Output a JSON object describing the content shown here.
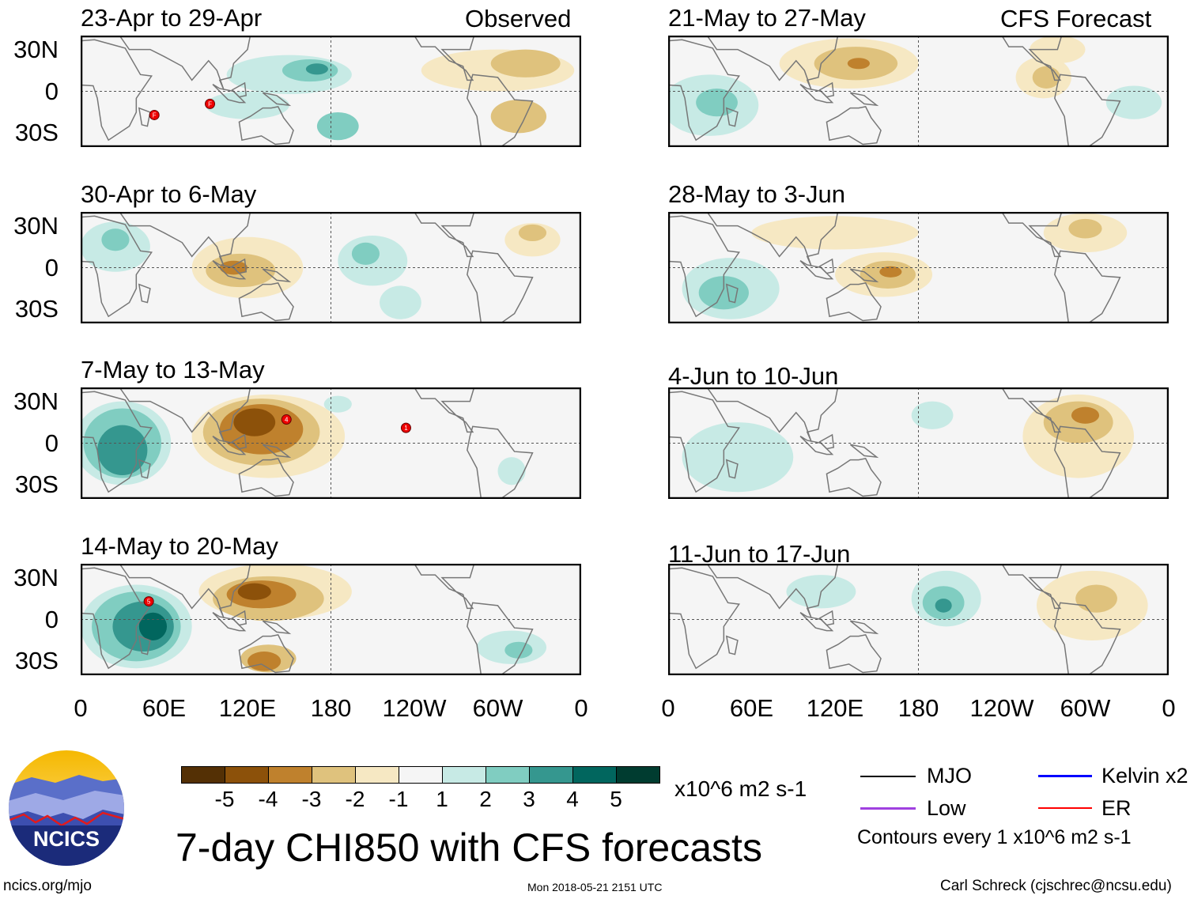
{
  "header": {
    "observed_label": "Observed",
    "forecast_label": "CFS Forecast"
  },
  "panels": [
    {
      "title": "23-Apr to 29-Apr",
      "type": "observed"
    },
    {
      "title": "30-Apr to 6-May",
      "type": "observed"
    },
    {
      "title": "7-May to 13-May",
      "type": "observed"
    },
    {
      "title": "14-May to 20-May",
      "type": "observed"
    },
    {
      "title": "21-May to 27-May",
      "type": "forecast"
    },
    {
      "title": "28-May to 3-Jun",
      "type": "forecast"
    },
    {
      "title": "4-Jun to 10-Jun",
      "type": "forecast"
    },
    {
      "title": "11-Jun to 17-Jun",
      "type": "forecast"
    }
  ],
  "y_ticks": [
    "30N",
    "0",
    "30S"
  ],
  "x_ticks": [
    "0",
    "60E",
    "120E",
    "180",
    "120W",
    "60W",
    "0"
  ],
  "colorbar": {
    "labels": [
      "-5",
      "-4",
      "-3",
      "-2",
      "-1",
      "1",
      "2",
      "3",
      "4",
      "5"
    ],
    "colors": [
      "#543005",
      "#8c510a",
      "#bf812d",
      "#dfc27d",
      "#f6e8c3",
      "#f5f5f5",
      "#c7eae5",
      "#80cdc1",
      "#35978f",
      "#01665e",
      "#003c30"
    ],
    "units": "x10^6 m2 s-1"
  },
  "legend": {
    "items": [
      {
        "label": "MJO",
        "color": "#000000"
      },
      {
        "label": "Low",
        "color": "#a040e0"
      },
      {
        "label": "Kelvin x2",
        "color": "#0000ff"
      },
      {
        "label": "ER",
        "color": "#ff0000"
      }
    ],
    "contours_note": "Contours every 1 x10^6 m2 s-1"
  },
  "title": "7-day CHI850 with CFS forecasts",
  "logo_text": "NCICS",
  "footer": {
    "url": "ncics.org/mjo",
    "timestamp": "Mon 2018-05-21 2151 UTC",
    "author": "Carl Schreck (cjschrec@ncsu.edu)"
  },
  "chart_data": {
    "type": "heatmap",
    "variable": "7-day CHI850 anomaly",
    "units": "x10^6 m2 s-1",
    "lon_range": [
      0,
      360
    ],
    "lat_range": [
      -40,
      40
    ],
    "anomaly_blobs_note": "approximate [lon, lat, lon_radius, lat_radius, level]",
    "panels": [
      {
        "blobs": [
          [
            150,
            12,
            45,
            14,
            1
          ],
          [
            165,
            15,
            20,
            8,
            2
          ],
          [
            170,
            16,
            8,
            4,
            3
          ],
          [
            120,
            -10,
            30,
            10,
            1
          ],
          [
            185,
            -25,
            15,
            10,
            2
          ],
          [
            300,
            15,
            55,
            15,
            -1
          ],
          [
            320,
            20,
            25,
            10,
            -2
          ],
          [
            315,
            -18,
            20,
            12,
            -2
          ]
        ],
        "storms": [
          {
            "lon": 53,
            "lat": -17,
            "label": "F"
          },
          {
            "lon": 93,
            "lat": -9,
            "label": "F"
          }
        ]
      },
      {
        "blobs": [
          [
            25,
            15,
            25,
            18,
            1
          ],
          [
            25,
            20,
            10,
            8,
            2
          ],
          [
            120,
            0,
            40,
            22,
            -1
          ],
          [
            115,
            -2,
            25,
            12,
            -2
          ],
          [
            110,
            0,
            10,
            5,
            -3
          ],
          [
            210,
            5,
            25,
            18,
            1
          ],
          [
            205,
            10,
            10,
            8,
            2
          ],
          [
            230,
            -25,
            15,
            12,
            1
          ],
          [
            325,
            20,
            20,
            12,
            -1
          ],
          [
            325,
            25,
            10,
            6,
            -2
          ]
        ],
        "storms": []
      },
      {
        "blobs": [
          [
            30,
            0,
            35,
            30,
            1
          ],
          [
            30,
            0,
            28,
            25,
            2
          ],
          [
            30,
            -5,
            18,
            18,
            3
          ],
          [
            135,
            5,
            55,
            30,
            -1
          ],
          [
            130,
            8,
            42,
            24,
            -2
          ],
          [
            130,
            10,
            30,
            18,
            -3
          ],
          [
            125,
            15,
            15,
            10,
            -4
          ],
          [
            185,
            28,
            10,
            6,
            1
          ],
          [
            310,
            -20,
            10,
            10,
            1
          ]
        ],
        "storms": [
          {
            "lon": 148,
            "lat": 17,
            "label": "4"
          },
          {
            "lon": 234,
            "lat": 11,
            "label": "1"
          }
        ]
      },
      {
        "blobs": [
          [
            40,
            -5,
            40,
            30,
            1
          ],
          [
            40,
            -5,
            32,
            25,
            2
          ],
          [
            45,
            -5,
            22,
            18,
            3
          ],
          [
            52,
            -5,
            10,
            10,
            4
          ],
          [
            140,
            20,
            55,
            20,
            -1
          ],
          [
            135,
            15,
            40,
            16,
            -2
          ],
          [
            130,
            18,
            25,
            10,
            -3
          ],
          [
            125,
            20,
            12,
            6,
            -4
          ],
          [
            135,
            -28,
            20,
            10,
            -2
          ],
          [
            132,
            -30,
            12,
            7,
            -3
          ],
          [
            310,
            -20,
            25,
            12,
            1
          ],
          [
            315,
            -22,
            10,
            6,
            2
          ]
        ],
        "storms": [
          {
            "lon": 49,
            "lat": 13,
            "label": "5"
          }
        ]
      },
      {
        "blobs": [
          [
            130,
            20,
            50,
            18,
            -1
          ],
          [
            135,
            20,
            30,
            12,
            -2
          ],
          [
            137,
            20,
            8,
            4,
            -3
          ],
          [
            30,
            -10,
            35,
            22,
            1
          ],
          [
            35,
            -8,
            15,
            10,
            2
          ],
          [
            270,
            10,
            20,
            15,
            -1
          ],
          [
            272,
            10,
            10,
            8,
            -2
          ],
          [
            280,
            30,
            20,
            10,
            -1
          ],
          [
            335,
            -8,
            20,
            12,
            1
          ]
        ],
        "storms": []
      },
      {
        "blobs": [
          [
            45,
            -15,
            35,
            22,
            1
          ],
          [
            40,
            -18,
            18,
            12,
            2
          ],
          [
            155,
            -5,
            35,
            16,
            -1
          ],
          [
            158,
            -5,
            20,
            10,
            -2
          ],
          [
            160,
            -3,
            8,
            4,
            -3
          ],
          [
            300,
            25,
            30,
            14,
            -1
          ],
          [
            300,
            28,
            12,
            7,
            -2
          ],
          [
            120,
            25,
            60,
            12,
            -1
          ]
        ],
        "storms": []
      },
      {
        "blobs": [
          [
            50,
            -10,
            40,
            25,
            1
          ],
          [
            190,
            20,
            15,
            10,
            1
          ],
          [
            295,
            5,
            40,
            30,
            -1
          ],
          [
            295,
            15,
            25,
            15,
            -2
          ],
          [
            300,
            20,
            10,
            6,
            -3
          ]
        ],
        "storms": []
      },
      {
        "blobs": [
          [
            200,
            15,
            25,
            20,
            1
          ],
          [
            198,
            12,
            15,
            12,
            2
          ],
          [
            198,
            10,
            6,
            5,
            3
          ],
          [
            110,
            20,
            25,
            12,
            1
          ],
          [
            305,
            10,
            40,
            25,
            -1
          ],
          [
            308,
            15,
            15,
            10,
            -2
          ]
        ],
        "storms": []
      }
    ]
  }
}
